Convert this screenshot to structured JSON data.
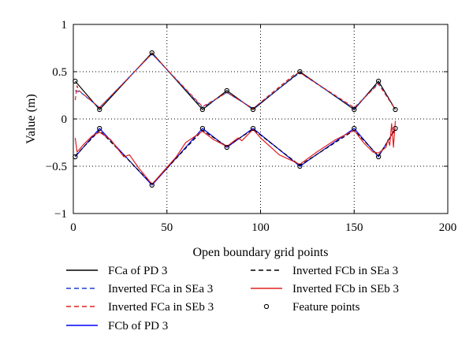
{
  "chart_data": {
    "type": "line",
    "title": "",
    "xlabel": "Open boundary grid points",
    "ylabel": "Value (m)",
    "xlim": [
      0,
      200
    ],
    "ylim": [
      -1,
      1
    ],
    "xticks": [
      0,
      50,
      100,
      150,
      200
    ],
    "yticks": [
      -1,
      -0.5,
      0,
      0.5,
      1
    ],
    "xtick_labels": [
      "0",
      "50",
      "100",
      "150",
      "200"
    ],
    "ytick_labels": [
      "−1",
      "−0.5",
      "0",
      "0.5",
      "1"
    ],
    "grid": true,
    "legend_position": "below",
    "series": [
      {
        "name": "FCa of PD 3",
        "color": "#000000",
        "style": "solid",
        "x": [
          1,
          14,
          42,
          69,
          82,
          96,
          121,
          150,
          163,
          172
        ],
        "y": [
          0.4,
          0.1,
          0.7,
          0.1,
          0.3,
          0.1,
          0.5,
          0.1,
          0.4,
          0.1
        ]
      },
      {
        "name": "Inverted FCa in SEa 3",
        "color": "#1f3fd0",
        "style": "dashed",
        "x": [
          1,
          4,
          14,
          42,
          69,
          82,
          96,
          121,
          150,
          163,
          172
        ],
        "y": [
          0.3,
          0.28,
          0.12,
          0.69,
          0.12,
          0.28,
          0.11,
          0.49,
          0.11,
          0.38,
          0.1
        ]
      },
      {
        "name": "Inverted FCa in SEb 3",
        "color": "#e02020",
        "style": "dashed",
        "x": [
          1,
          2,
          3,
          14,
          42,
          69,
          82,
          96,
          118,
          121,
          150,
          163,
          167,
          172
        ],
        "y": [
          0.2,
          0.35,
          0.3,
          0.12,
          0.69,
          0.13,
          0.28,
          0.11,
          0.47,
          0.49,
          0.12,
          0.37,
          0.25,
          0.1
        ]
      },
      {
        "name": "FCb of PD 3",
        "color": "#0000ff",
        "style": "solid",
        "x": [
          1,
          14,
          42,
          69,
          82,
          96,
          121,
          150,
          163,
          172
        ],
        "y": [
          -0.4,
          -0.1,
          -0.7,
          -0.1,
          -0.3,
          -0.1,
          -0.5,
          -0.1,
          -0.4,
          -0.1
        ]
      },
      {
        "name": "Inverted FCb in SEa 3",
        "color": "#000000",
        "style": "dashed",
        "x": [
          1,
          14,
          42,
          69,
          82,
          96,
          121,
          150,
          163,
          172
        ],
        "y": [
          -0.39,
          -0.12,
          -0.69,
          -0.12,
          -0.29,
          -0.11,
          -0.49,
          -0.12,
          -0.39,
          -0.11
        ]
      },
      {
        "name": "Inverted FCb in SEb 3",
        "color": "#e02020",
        "style": "solid",
        "x": [
          1,
          2,
          5,
          10,
          14,
          20,
          27,
          30,
          35,
          42,
          55,
          60,
          69,
          75,
          82,
          88,
          90,
          96,
          100,
          110,
          121,
          130,
          140,
          150,
          155,
          160,
          163,
          167,
          168,
          169,
          170,
          171,
          172
        ],
        "y": [
          -0.2,
          -0.35,
          -0.28,
          -0.18,
          -0.14,
          -0.22,
          -0.4,
          -0.38,
          -0.52,
          -0.69,
          -0.4,
          -0.25,
          -0.13,
          -0.22,
          -0.29,
          -0.2,
          -0.23,
          -0.11,
          -0.2,
          -0.38,
          -0.48,
          -0.35,
          -0.22,
          -0.12,
          -0.25,
          -0.35,
          -0.36,
          -0.3,
          -0.22,
          -0.28,
          -0.05,
          -0.3,
          -0.02
        ]
      },
      {
        "name": "Feature points",
        "color": "#000000",
        "style": "marker-circle",
        "x": [
          1,
          14,
          42,
          69,
          82,
          96,
          121,
          150,
          163,
          172,
          1,
          14,
          42,
          69,
          82,
          96,
          121,
          150,
          163,
          172
        ],
        "y": [
          0.4,
          0.1,
          0.7,
          0.1,
          0.3,
          0.1,
          0.5,
          0.1,
          0.4,
          0.1,
          -0.4,
          -0.1,
          -0.7,
          -0.1,
          -0.3,
          -0.1,
          -0.5,
          -0.1,
          -0.4,
          -0.1
        ]
      }
    ],
    "legend": [
      {
        "label": "FCa of PD 3",
        "series": 0
      },
      {
        "label": "Inverted FCa in SEa 3",
        "series": 1
      },
      {
        "label": "Inverted FCa in SEb 3",
        "series": 2
      },
      {
        "label": "FCb of PD 3",
        "series": 3
      },
      {
        "label": "Inverted FCb in SEa 3",
        "series": 4
      },
      {
        "label": "Inverted FCb in SEb 3",
        "series": 5
      },
      {
        "label": "Feature points",
        "series": 6
      }
    ]
  }
}
